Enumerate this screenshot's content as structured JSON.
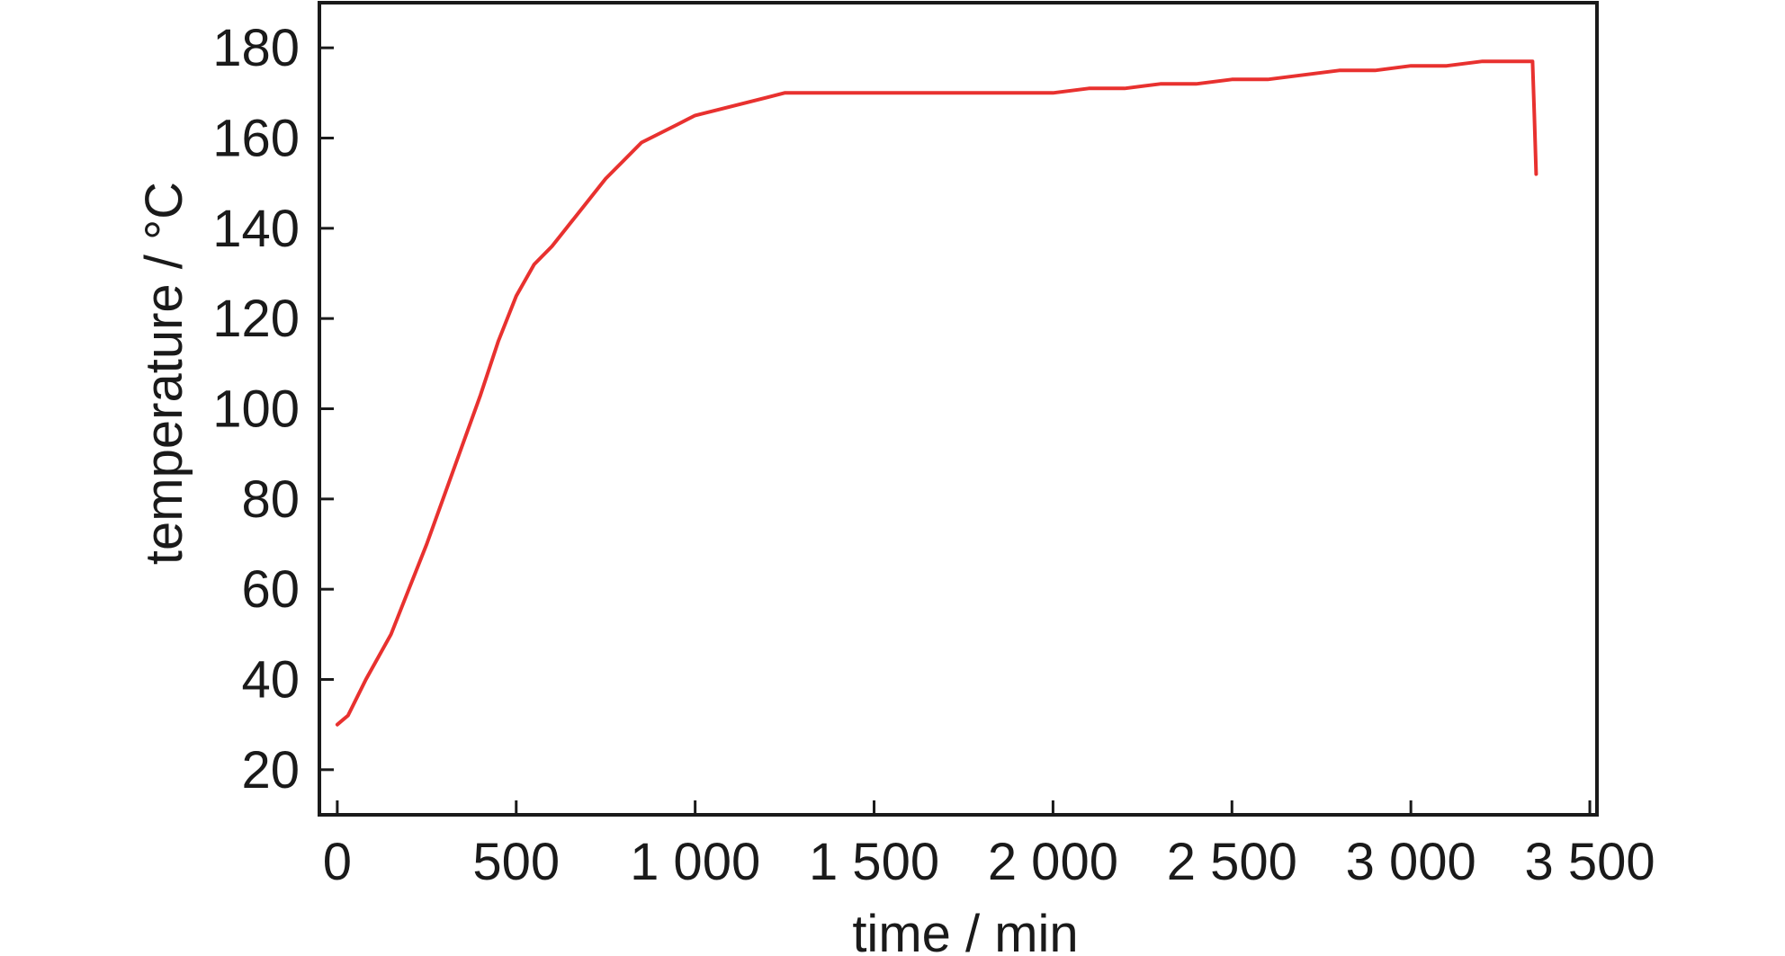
{
  "chart_data": {
    "type": "line",
    "xlabel": "time / min",
    "ylabel": "temperature / °C",
    "xlim": [
      -50,
      3520
    ],
    "ylim": [
      10,
      190
    ],
    "x_ticks": [
      0,
      500,
      1000,
      1500,
      2000,
      2500,
      3000,
      3500
    ],
    "x_tick_labels": [
      "0",
      "500",
      "1 000",
      "1 500",
      "2 000",
      "2 500",
      "3 000",
      "3 500"
    ],
    "y_ticks": [
      20,
      40,
      60,
      80,
      100,
      120,
      140,
      160,
      180
    ],
    "y_tick_labels": [
      "20",
      "40",
      "60",
      "80",
      "100",
      "120",
      "140",
      "160",
      "180"
    ],
    "grid": false,
    "colors": {
      "series": "#e8312f",
      "axis": "#1a1a1a"
    },
    "series": [
      {
        "x": [
          0,
          30,
          80,
          150,
          200,
          250,
          300,
          350,
          400,
          450,
          500,
          550,
          600,
          650,
          700,
          750,
          800,
          850,
          900,
          950,
          1000,
          1050,
          1100,
          1150,
          1200,
          1250,
          1300,
          1350,
          1400,
          1500,
          1600,
          1700,
          1800,
          1900,
          2000,
          2100,
          2200,
          2300,
          2400,
          2500,
          2600,
          2700,
          2800,
          2900,
          3000,
          3100,
          3200,
          3300,
          3340,
          3345,
          3350
        ],
        "y": [
          30,
          32,
          40,
          50,
          60,
          70,
          81,
          92,
          103,
          115,
          125,
          132,
          136,
          141,
          146,
          151,
          155,
          159,
          161,
          163,
          165,
          166,
          167,
          168,
          169,
          170,
          170,
          170,
          170,
          170,
          170,
          170,
          170,
          170,
          170,
          171,
          171,
          172,
          172,
          173,
          173,
          174,
          175,
          175,
          176,
          176,
          177,
          177,
          177,
          165,
          152
        ]
      }
    ]
  }
}
